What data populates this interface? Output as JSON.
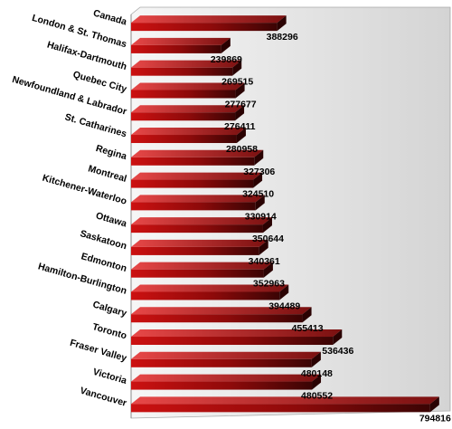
{
  "chart_data": {
    "type": "bar",
    "orientation": "horizontal",
    "style": "3d",
    "title": "",
    "xlabel": "",
    "ylabel": "",
    "grid": false,
    "legend": "none",
    "xlim": [
      0,
      800000
    ],
    "colors": {
      "bar_light": "#d11a1a",
      "bar_dark": "#4a0606",
      "panel": "#e0e0e0"
    },
    "categories": [
      "Canada",
      "London & St. Thomas",
      "Halifax-Dartmouth",
      "Quebec City",
      "Newfoundland & Labrador",
      "St. Catharines",
      "Regina",
      "Montreal",
      "Kitchener-Waterloo",
      "Ottawa",
      "Saskatoon",
      "Edmonton",
      "Hamilton-Burlington",
      "Calgary",
      "Toronto",
      "Fraser Valley",
      "Victoria",
      "Vancouver"
    ],
    "values": [
      388296,
      239869,
      269515,
      277677,
      276411,
      280958,
      327306,
      324510,
      330914,
      350644,
      340361,
      352963,
      394489,
      455413,
      536436,
      480148,
      480552,
      794816
    ],
    "value_labels": [
      "388296",
      "239869",
      "269515",
      "277677",
      "276411",
      "280958",
      "327306",
      "324510",
      "330914",
      "350644",
      "340361",
      "352963",
      "394489",
      "455413",
      "536436",
      "480148",
      "480552",
      "794816"
    ]
  }
}
